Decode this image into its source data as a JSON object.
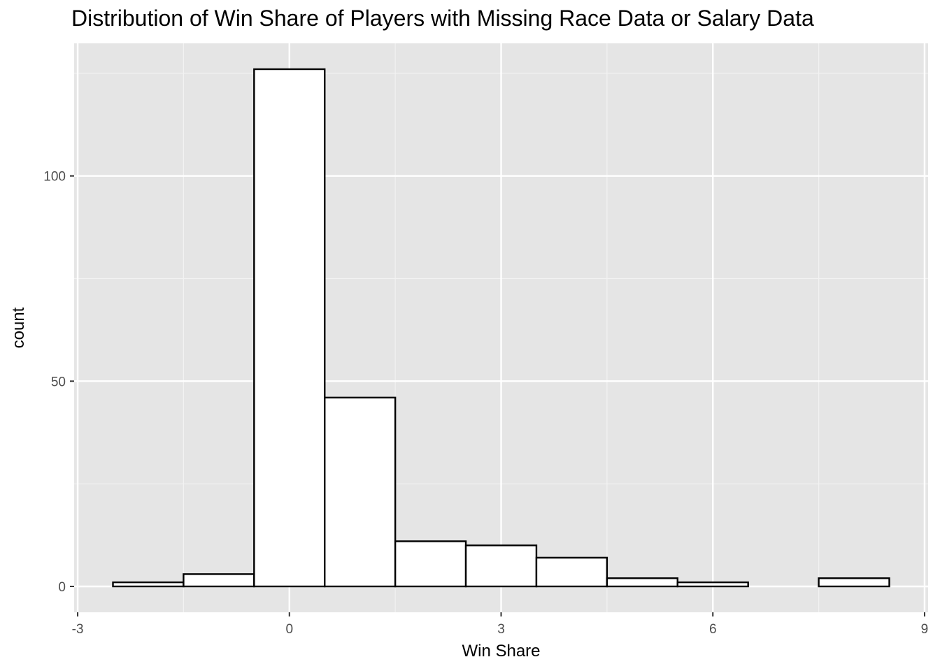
{
  "chart_data": {
    "type": "bar",
    "title": "Distribution of Win Share of Players with Missing Race Data or Salary Data",
    "xlabel": "Win Share",
    "ylabel": "count",
    "bin_width": 1,
    "bins": [
      {
        "start": -2.5,
        "end": -1.5,
        "count": 1
      },
      {
        "start": -1.5,
        "end": -0.5,
        "count": 3
      },
      {
        "start": -0.5,
        "end": 0.5,
        "count": 126
      },
      {
        "start": 0.5,
        "end": 1.5,
        "count": 46
      },
      {
        "start": 1.5,
        "end": 2.5,
        "count": 11
      },
      {
        "start": 2.5,
        "end": 3.5,
        "count": 10
      },
      {
        "start": 3.5,
        "end": 4.5,
        "count": 7
      },
      {
        "start": 4.5,
        "end": 5.5,
        "count": 2
      },
      {
        "start": 5.5,
        "end": 6.5,
        "count": 1
      },
      {
        "start": 6.5,
        "end": 7.5,
        "count": 0
      },
      {
        "start": 7.5,
        "end": 8.5,
        "count": 2
      }
    ],
    "xlim": [
      -3.05,
      9.05
    ],
    "ylim": [
      -6.3,
      132.3
    ],
    "x_ticks": [
      -3,
      0,
      3,
      6,
      9
    ],
    "x_tick_labels": [
      "-3",
      "0",
      "3",
      "6",
      "9"
    ],
    "y_ticks": [
      0,
      50,
      100
    ],
    "y_tick_labels": [
      "0",
      "50",
      "100"
    ],
    "grid": true,
    "colors": {
      "panel_background": "#e5e5e5",
      "grid_major": "#ffffff",
      "grid_minor": "#f2f2f2",
      "bar_fill": "#ffffff",
      "bar_stroke": "#000000",
      "tick_text": "#4d4d4d"
    }
  }
}
